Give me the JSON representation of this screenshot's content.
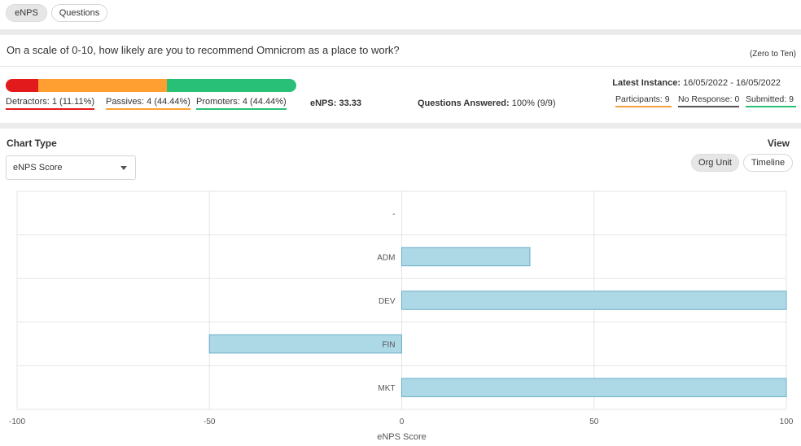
{
  "tabs": [
    {
      "label": "eNPS",
      "active": true
    },
    {
      "label": "Questions",
      "active": false
    }
  ],
  "question": {
    "text": "On a scale of 0-10, how likely are you to recommend Omnicrom as a place to work?",
    "scale": "(Zero to Ten)"
  },
  "distribution": {
    "detractors": {
      "label": "Detractors:",
      "value": "1 (11.11%)",
      "fraction": 0.1111,
      "color": "#e31a1c"
    },
    "passives": {
      "label": "Passives:",
      "value": "4 (44.44%)",
      "fraction": 0.4444,
      "color": "#ff9f32"
    },
    "promoters": {
      "label": "Promoters:",
      "value": "4 (44.44%)",
      "fraction": 0.4444,
      "color": "#28c076"
    }
  },
  "enps": {
    "label": "eNPS:",
    "value": "33.33"
  },
  "answered": {
    "label": "Questions Answered:",
    "value": "100% (9/9)"
  },
  "latest": {
    "label": "Latest Instance:",
    "value": "16/05/2022 - 16/05/2022"
  },
  "stats": {
    "participants": {
      "label": "Participants:",
      "value": "9",
      "color": "#f0a040"
    },
    "no_response": {
      "label": "No Response:",
      "value": "0",
      "color": "#555555"
    },
    "submitted": {
      "label": "Submitted:",
      "value": "9",
      "color": "#28c076"
    }
  },
  "chart_type": {
    "label": "Chart Type",
    "selected": "eNPS Score"
  },
  "view": {
    "label": "View",
    "options": [
      {
        "label": "Org Unit",
        "active": true
      },
      {
        "label": "Timeline",
        "active": false
      }
    ]
  },
  "chart_data": {
    "type": "bar",
    "orientation": "horizontal",
    "categories": [
      "-",
      "ADM",
      "DEV",
      "FIN",
      "MKT"
    ],
    "values": [
      0,
      33.33,
      100,
      -50,
      100
    ],
    "xlabel": "eNPS Score",
    "xlim": [
      -100,
      100
    ],
    "xticks": [
      -100,
      -50,
      0,
      50,
      100
    ],
    "grid": true,
    "bar_color": "#add8e6",
    "bar_stroke": "#6aaec8"
  }
}
